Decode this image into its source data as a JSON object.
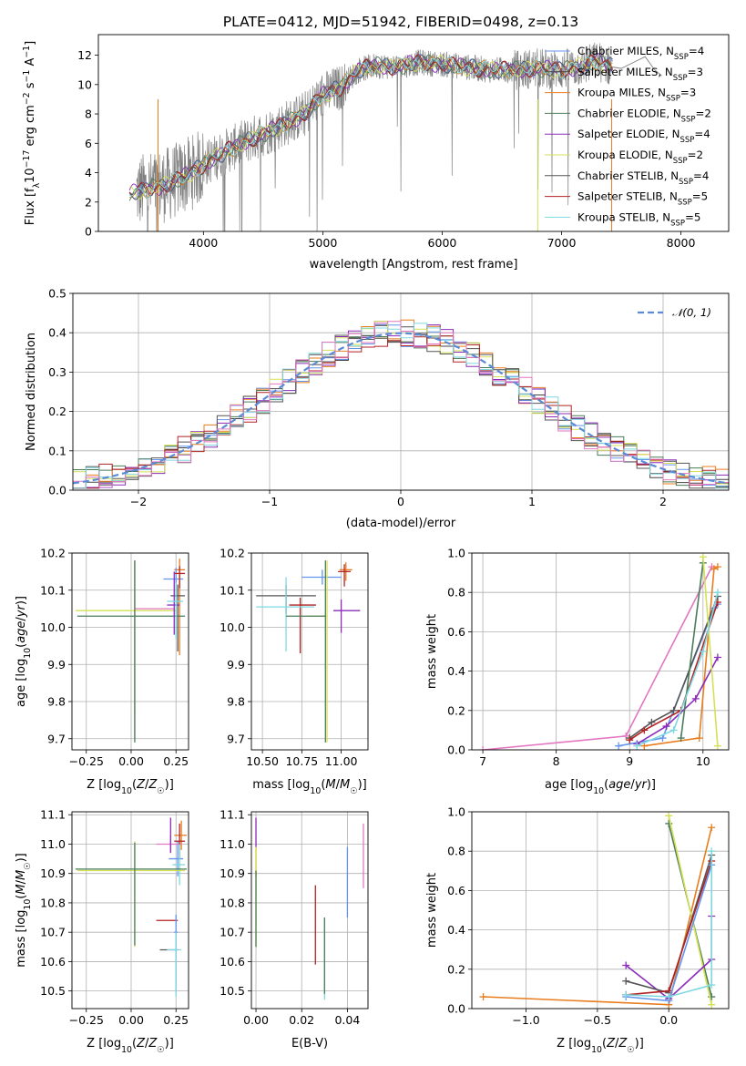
{
  "figure": {
    "title": "PLATE=0412, MJD=51942, FIBERID=0498, z=0.13"
  },
  "colors": {
    "data": "#808080",
    "series": [
      "#6495ed",
      "#444444",
      "#e87d1e",
      "#4a7c59",
      "#8b2bb9",
      "#d4e157",
      "#555555",
      "#b22222",
      "#7fd8e0"
    ],
    "pink": "#e377c2",
    "normal": "#5b8bd6"
  },
  "chart_data": [
    {
      "id": "spectrum",
      "type": "line",
      "xlabel": "wavelength [Angstrom, rest frame]",
      "ylabel": "Flux [f$_\\lambda$10$^{-17}$ erg cm$^{-2}$ s$^{-1}$ A$^{-1}$]",
      "ylabel_parts": [
        "Flux [f",
        "λ",
        "10",
        "−17",
        " erg cm",
        "−2",
        " s",
        "−1",
        " A",
        "−1",
        "]"
      ],
      "xlim": [
        3120,
        8400
      ],
      "ylim": [
        0,
        13.4
      ],
      "xticks": [
        4000,
        5000,
        6000,
        7000,
        8000
      ],
      "yticks": [
        0,
        2,
        4,
        6,
        8,
        10,
        12
      ],
      "grid": false,
      "legend_position": "upper right",
      "legend": [
        {
          "pre": "Chabrier MILES, N",
          "sub": "SSP",
          "post": "=4",
          "color": "#6495ed"
        },
        {
          "pre": "Salpeter MILES, N",
          "sub": "SSP",
          "post": "=3",
          "color": "#444444"
        },
        {
          "pre": "Kroupa MILES, N",
          "sub": "SSP",
          "post": "=3",
          "color": "#e87d1e"
        },
        {
          "pre": "Chabrier ELODIE, N",
          "sub": "SSP",
          "post": "=2",
          "color": "#4a7c59"
        },
        {
          "pre": "Salpeter ELODIE, N",
          "sub": "SSP",
          "post": "=4",
          "color": "#8b2bb9"
        },
        {
          "pre": "Kroupa ELODIE, N",
          "sub": "SSP",
          "post": "=2",
          "color": "#d4e157"
        },
        {
          "pre": "Chabrier STELIB, N",
          "sub": "SSP",
          "post": "=4",
          "color": "#555555"
        },
        {
          "pre": "Salpeter STELIB, N",
          "sub": "SSP",
          "post": "=5",
          "color": "#b22222"
        },
        {
          "pre": "Kroupa STELIB, N",
          "sub": "SSP",
          "post": "=5",
          "color": "#7fd8e0"
        }
      ],
      "continuum": [
        [
          3380,
          2.6
        ],
        [
          3500,
          2.8
        ],
        [
          3700,
          3.2
        ],
        [
          3900,
          4.0
        ],
        [
          4050,
          4.8
        ],
        [
          4200,
          5.5
        ],
        [
          4400,
          6.3
        ],
        [
          4600,
          7.0
        ],
        [
          4850,
          8.0
        ],
        [
          5000,
          9.3
        ],
        [
          5150,
          9.8
        ],
        [
          5300,
          11.0
        ],
        [
          5450,
          11.3
        ],
        [
          5600,
          11.2
        ],
        [
          5800,
          11.5
        ],
        [
          6000,
          11.4
        ],
        [
          6200,
          11.2
        ],
        [
          6400,
          11.0
        ],
        [
          6600,
          11.0
        ],
        [
          6800,
          11.1
        ],
        [
          7000,
          11.0
        ],
        [
          7200,
          11.3
        ],
        [
          7300,
          11.6
        ],
        [
          7420,
          11.2
        ]
      ]
    },
    {
      "id": "residuals",
      "type": "histogram",
      "xlabel": "(data-model)/error",
      "ylabel": "Normed distribution",
      "xlim": [
        -2.5,
        2.5
      ],
      "ylim": [
        0,
        0.5
      ],
      "xticks": [
        -2,
        -1,
        0,
        1,
        2
      ],
      "yticks": [
        0.0,
        0.1,
        0.2,
        0.3,
        0.4,
        0.5
      ],
      "grid": true,
      "legend": [
        {
          "label": "𝒩(0, 1)",
          "style": "dashed"
        }
      ],
      "legend_position": "upper right",
      "bin_width": 0.1,
      "gaussian": {
        "mean": 0,
        "sigma": 1
      }
    },
    {
      "id": "age-vs-Z",
      "type": "scatter",
      "xlabel_main": "Z [log",
      "xlabel_sub": "10",
      "xlabel_tail": "(Z/Z",
      "xlabel": "Z [log10(Z/Z☉)]",
      "ylabel": "age  [log10(age/yr)]",
      "xlim": [
        -0.33,
        0.32
      ],
      "ylim": [
        9.67,
        10.2
      ],
      "xticks": [
        -0.25,
        0.0,
        0.25
      ],
      "yticks": [
        9.7,
        9.8,
        9.9,
        10.0,
        10.1,
        10.2
      ],
      "grid": true,
      "points": [
        {
          "x": 0.27,
          "y": 10.155,
          "xerr": [
            0.03,
            0.03
          ],
          "yerr": [
            0.23,
            0.03
          ],
          "color": "#e87d1e"
        },
        {
          "x": 0.25,
          "y": 10.13,
          "xerr": [
            0.07,
            0.04
          ],
          "yerr": [
            0.05,
            0.03
          ],
          "color": "#6495ed"
        },
        {
          "x": 0.27,
          "y": 10.145,
          "xerr": [
            0.03,
            0.03
          ],
          "yerr": [
            0.04,
            0.02
          ],
          "color": "#b22222"
        },
        {
          "x": 0.26,
          "y": 10.085,
          "xerr": [
            0.04,
            0.04
          ],
          "yerr": [
            0.15,
            0.03
          ],
          "color": "#555555"
        },
        {
          "x": 0.02,
          "y": 10.05,
          "xerr": [
            0.0,
            0.22
          ],
          "yerr": [
            0.35,
            0.13
          ],
          "color": "#e377c2"
        },
        {
          "x": 0.02,
          "y": 10.045,
          "xerr": [
            0.33,
            0.23
          ],
          "yerr": [
            0.28,
            0.13
          ],
          "color": "#d4e157"
        },
        {
          "x": 0.02,
          "y": 10.03,
          "xerr": [
            0.32,
            0.28
          ],
          "yerr": [
            0.34,
            0.15
          ],
          "color": "#4a7c59"
        },
        {
          "x": 0.24,
          "y": 10.06,
          "xerr": [
            0.04,
            0.03
          ],
          "yerr": [
            0.08,
            0.09
          ],
          "color": "#8b2bb9"
        },
        {
          "x": 0.25,
          "y": 10.07,
          "xerr": [
            0.05,
            0.04
          ],
          "yerr": [
            0.1,
            0.05
          ],
          "color": "#7fd8e0"
        }
      ]
    },
    {
      "id": "age-vs-mass",
      "type": "scatter",
      "xlabel": "mass [log10(M/M☉)]",
      "ylabel": "",
      "xlim": [
        10.43,
        11.17
      ],
      "ylim": [
        9.67,
        10.2
      ],
      "xticks": [
        10.5,
        10.75,
        11.0
      ],
      "yticks": [
        9.7,
        9.8,
        9.9,
        10.0,
        10.1,
        10.2
      ],
      "grid": true,
      "points": [
        {
          "x": 11.03,
          "y": 10.155,
          "xerr": [
            0.04,
            0.04
          ],
          "yerr": [
            0.03,
            0.02
          ],
          "color": "#e87d1e"
        },
        {
          "x": 10.88,
          "y": 10.135,
          "xerr": [
            0.13,
            0.12
          ],
          "yerr": [
            0.02,
            0.02
          ],
          "color": "#6495ed"
        },
        {
          "x": 11.02,
          "y": 10.15,
          "xerr": [
            0.04,
            0.04
          ],
          "yerr": [
            0.04,
            0.02
          ],
          "color": "#b22222"
        },
        {
          "x": 10.65,
          "y": 10.085,
          "xerr": [
            0.19,
            0.19
          ],
          "yerr": [
            0.05,
            0.03
          ],
          "color": "#555555"
        },
        {
          "x": 11.0,
          "y": 10.045,
          "xerr": [
            0.05,
            0.12
          ],
          "yerr": [
            0.06,
            0.03
          ],
          "color": "#8b2bb9"
        },
        {
          "x": 10.74,
          "y": 10.06,
          "xerr": [
            0.07,
            0.1
          ],
          "yerr": [
            0.13,
            0.02
          ],
          "color": "#b22222"
        },
        {
          "x": 10.65,
          "y": 10.055,
          "xerr": [
            0.19,
            0.18
          ],
          "yerr": [
            0.12,
            0.08
          ],
          "color": "#7fd8e0"
        },
        {
          "x": 10.91,
          "y": 10.03,
          "xerr": [
            0.12,
            0.0
          ],
          "yerr": [
            0.34,
            0.15
          ],
          "color": "#d4e157"
        },
        {
          "x": 10.9,
          "y": 10.03,
          "xerr": [
            0.25,
            0.0
          ],
          "yerr": [
            0.34,
            0.15
          ],
          "color": "#4a7c59"
        }
      ]
    },
    {
      "id": "weight-vs-age",
      "type": "line",
      "xlabel": "age  [log10(age/yr)]",
      "ylabel": "mass weight",
      "xlim": [
        6.85,
        10.35
      ],
      "ylim": [
        0,
        1.0
      ],
      "xticks": [
        7,
        8,
        9,
        10
      ],
      "yticks": [
        0.0,
        0.2,
        0.4,
        0.6,
        0.8,
        1.0
      ],
      "grid": true,
      "series": [
        {
          "color": "#e377c2",
          "x": [
            7.0,
            8.95,
            10.12
          ],
          "y": [
            0.0,
            0.07,
            0.93
          ]
        },
        {
          "color": "#e87d1e",
          "x": [
            9.2,
            9.95,
            10.15,
            10.2
          ],
          "y": [
            0.02,
            0.06,
            0.92,
            0.93
          ]
        },
        {
          "color": "#6495ed",
          "x": [
            8.85,
            9.45,
            10.15,
            10.2
          ],
          "y": [
            0.02,
            0.06,
            0.72,
            0.74
          ]
        },
        {
          "color": "#555555",
          "x": [
            9.0,
            9.3,
            9.6,
            10.2
          ],
          "y": [
            0.06,
            0.14,
            0.2,
            0.78
          ]
        },
        {
          "color": "#b22222",
          "x": [
            9.0,
            9.2,
            9.7,
            10.2
          ],
          "y": [
            0.05,
            0.1,
            0.2,
            0.75
          ]
        },
        {
          "color": "#8b2bb9",
          "x": [
            9.1,
            9.5,
            9.9,
            10.2
          ],
          "y": [
            0.03,
            0.12,
            0.26,
            0.47
          ]
        },
        {
          "color": "#4a7c59",
          "x": [
            9.7,
            10.0
          ],
          "y": [
            0.06,
            0.95
          ]
        },
        {
          "color": "#d4e157",
          "x": [
            10.0,
            10.2
          ],
          "y": [
            0.98,
            0.02
          ]
        },
        {
          "color": "#7fd8e0",
          "x": [
            9.1,
            9.6,
            10.0,
            10.2
          ],
          "y": [
            0.02,
            0.1,
            0.5,
            0.8
          ]
        }
      ]
    },
    {
      "id": "mass-vs-Z",
      "type": "scatter",
      "xlabel": "Z [log10(Z/Z☉)]",
      "ylabel": "mass [log10(M/M☉)]",
      "xlim": [
        -0.33,
        0.32
      ],
      "ylim": [
        10.44,
        11.11
      ],
      "xticks": [
        -0.25,
        0.0,
        0.25
      ],
      "yticks": [
        10.5,
        10.6,
        10.7,
        10.8,
        10.9,
        11.0,
        11.1
      ],
      "grid": true,
      "points": [
        {
          "x": 0.28,
          "y": 11.03,
          "xerr": [
            0.04,
            0.03
          ],
          "yerr": [
            0.05,
            0.05
          ],
          "color": "#e87d1e"
        },
        {
          "x": 0.26,
          "y": 10.95,
          "xerr": [
            0.05,
            0.03
          ],
          "yerr": [
            0.06,
            0.06
          ],
          "color": "#6495ed"
        },
        {
          "x": 0.22,
          "y": 11.0,
          "xerr": [
            0.08,
            0.06
          ],
          "yerr": [
            0.03,
            0.03
          ],
          "color": "#e377c2"
        },
        {
          "x": 0.27,
          "y": 11.01,
          "xerr": [
            0.03,
            0.03
          ],
          "yerr": [
            0.06,
            0.06
          ],
          "color": "#b22222"
        },
        {
          "x": 0.27,
          "y": 10.93,
          "xerr": [
            0.04,
            0.03
          ],
          "yerr": [
            0.07,
            0.07
          ],
          "color": "#7fd8e0"
        },
        {
          "x": 0.02,
          "y": 10.91,
          "xerr": [
            0.32,
            0.28
          ],
          "yerr": [
            0.26,
            0.1
          ],
          "color": "#d4e157"
        },
        {
          "x": 0.02,
          "y": 10.915,
          "xerr": [
            0.33,
            0.29
          ],
          "yerr": [
            0.26,
            0.09
          ],
          "color": "#4a7c59"
        },
        {
          "x": 0.2,
          "y": 10.74,
          "xerr": [
            0.06,
            0.06
          ],
          "yerr": [
            0.0,
            0.0
          ],
          "color": "#b22222"
        },
        {
          "x": 0.22,
          "y": 10.64,
          "xerr": [
            0.06,
            0.04
          ],
          "yerr": [
            0.0,
            0.0
          ],
          "color": "#555555"
        },
        {
          "x": 0.25,
          "y": 10.7,
          "xerr": [
            0.01,
            0.01
          ],
          "yerr": [
            0.2,
            0.06
          ],
          "color": "#6495ed"
        },
        {
          "x": 0.25,
          "y": 10.64,
          "xerr": [
            0.05,
            0.03
          ],
          "yerr": [
            0.16,
            0.06
          ],
          "color": "#7fd8e0"
        },
        {
          "x": 0.22,
          "y": 11.03,
          "xerr": [
            0.0,
            0.0
          ],
          "yerr": [
            0.06,
            0.06
          ],
          "color": "#8b2bb9"
        }
      ]
    },
    {
      "id": "mass-vs-EBV",
      "type": "scatter",
      "xlabel": "E(B-V)",
      "ylabel": "",
      "xlim": [
        -0.002,
        0.049
      ],
      "ylim": [
        10.44,
        11.11
      ],
      "xticks": [
        0.0,
        0.02,
        0.04
      ],
      "yticks": [
        10.5,
        10.6,
        10.7,
        10.8,
        10.9,
        11.0,
        11.1
      ],
      "grid": true,
      "points": [
        {
          "x": 0.0,
          "y": 11.04,
          "xerr": [
            0,
            0
          ],
          "yerr": [
            0.05,
            0.05
          ],
          "color": "#8b2bb9"
        },
        {
          "x": 0.0,
          "y": 10.95,
          "xerr": [
            0,
            0
          ],
          "yerr": [
            0.06,
            0.04
          ],
          "color": "#e87d1e"
        },
        {
          "x": 0.0,
          "y": 10.83,
          "xerr": [
            0,
            0
          ],
          "yerr": [
            0.18,
            0.16
          ],
          "color": "#d4e157"
        },
        {
          "x": 0.0,
          "y": 10.78,
          "xerr": [
            0,
            0
          ],
          "yerr": [
            0.13,
            0.13
          ],
          "color": "#4a7c59"
        },
        {
          "x": 0.026,
          "y": 10.72,
          "xerr": [
            0,
            0
          ],
          "yerr": [
            0.13,
            0.14
          ],
          "color": "#b22222"
        },
        {
          "x": 0.03,
          "y": 10.61,
          "xerr": [
            0,
            0
          ],
          "yerr": [
            0.14,
            0.14
          ],
          "color": "#7fd8e0"
        },
        {
          "x": 0.03,
          "y": 10.62,
          "xerr": [
            0,
            0
          ],
          "yerr": [
            0.13,
            0.13
          ],
          "color": "#4a7c59"
        },
        {
          "x": 0.04,
          "y": 10.87,
          "xerr": [
            0,
            0
          ],
          "yerr": [
            0.12,
            0.12
          ],
          "color": "#6495ed"
        },
        {
          "x": 0.047,
          "y": 10.96,
          "xerr": [
            0,
            0
          ],
          "yerr": [
            0.11,
            0.11
          ],
          "color": "#e377c2"
        }
      ]
    },
    {
      "id": "weight-vs-Z",
      "type": "line",
      "xlabel": "Z [log10(Z/Z☉)]",
      "ylabel": "mass weight",
      "xlim": [
        -1.38,
        0.42
      ],
      "ylim": [
        0,
        1.0
      ],
      "xticks": [
        -1.0,
        -0.5,
        0.0
      ],
      "yticks": [
        0.0,
        0.2,
        0.4,
        0.6,
        0.8,
        1.0
      ],
      "grid": true,
      "series": [
        {
          "color": "#e87d1e",
          "x": [
            -1.3,
            0.0,
            0.3
          ],
          "y": [
            0.06,
            0.02,
            0.92
          ]
        },
        {
          "color": "#4a7c59",
          "x": [
            0.0,
            0.3
          ],
          "y": [
            0.94,
            0.06
          ]
        },
        {
          "color": "#d4e157",
          "x": [
            0.0,
            0.3
          ],
          "y": [
            0.98,
            0.02
          ]
        },
        {
          "color": "#8b2bb9",
          "x": [
            -0.3,
            0.0,
            0.3,
            0.3
          ],
          "y": [
            0.22,
            0.05,
            0.25,
            0.47
          ]
        },
        {
          "color": "#555555",
          "x": [
            -0.3,
            0.0,
            0.3
          ],
          "y": [
            0.14,
            0.08,
            0.78
          ]
        },
        {
          "color": "#b22222",
          "x": [
            -0.3,
            0.0,
            0.3
          ],
          "y": [
            0.07,
            0.09,
            0.75
          ]
        },
        {
          "color": "#6495ed",
          "x": [
            -0.3,
            0.0,
            0.3
          ],
          "y": [
            0.06,
            0.04,
            0.73
          ]
        },
        {
          "color": "#7fd8e0",
          "x": [
            -0.3,
            0.0,
            0.3,
            0.3
          ],
          "y": [
            0.07,
            0.06,
            0.12,
            0.8
          ]
        }
      ]
    }
  ]
}
